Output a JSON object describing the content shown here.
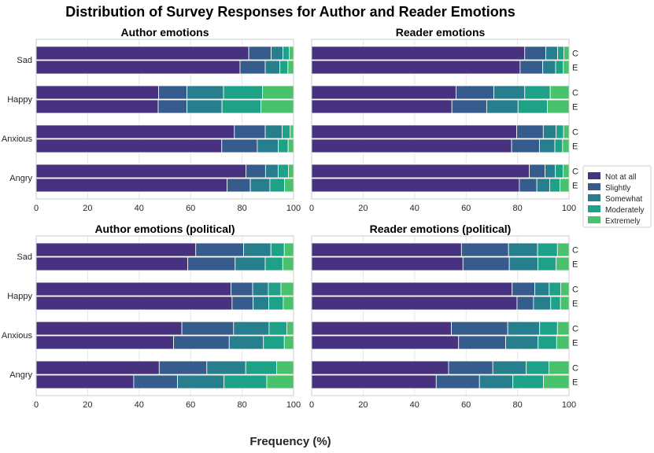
{
  "chart_data": {
    "type": "bar",
    "orientation": "horizontal-stacked",
    "title": "Distribution of Survey Responses for Author and Reader Emotions",
    "xlabel": "Frequency (%)",
    "xlim": [
      0,
      100
    ],
    "xticks": [
      0,
      20,
      40,
      60,
      80,
      100
    ],
    "categories": [
      "Sad",
      "Happy",
      "Anxious",
      "Angry"
    ],
    "bar_labels": [
      "C",
      "E"
    ],
    "response_levels": [
      "Not at all",
      "Slightly",
      "Somewhat",
      "Moderately",
      "Extremely"
    ],
    "colors": [
      "#46327e",
      "#365c8d",
      "#277f8e",
      "#1fa187",
      "#4ac16d"
    ],
    "legend_position": "right",
    "panels": [
      {
        "title": "Author emotions",
        "show_bar_labels": false,
        "groups": [
          {
            "category": "Sad",
            "bars": [
              [
                82.6,
                8.7,
                4.6,
                2.4,
                1.7
              ],
              [
                79.2,
                9.8,
                5.7,
                3.1,
                2.2
              ]
            ]
          },
          {
            "category": "Happy",
            "bars": [
              [
                47.6,
                11.0,
                14.2,
                15.1,
                12.1
              ],
              [
                47.4,
                11.2,
                13.6,
                15.1,
                12.7
              ]
            ]
          },
          {
            "category": "Anxious",
            "bars": [
              [
                77.0,
                12.0,
                6.6,
                3.1,
                1.3
              ],
              [
                72.1,
                13.8,
                8.2,
                3.8,
                2.1
              ]
            ]
          },
          {
            "category": "Angry",
            "bars": [
              [
                81.5,
                7.6,
                4.9,
                4.0,
                2.0
              ],
              [
                74.2,
                9.0,
                7.6,
                5.7,
                3.5
              ]
            ]
          }
        ]
      },
      {
        "title": "Reader emotions",
        "show_bar_labels": true,
        "groups": [
          {
            "category": "Sad",
            "bars": [
              [
                82.8,
                8.2,
                4.6,
                2.4,
                2.0
              ],
              [
                81.0,
                8.8,
                5.0,
                3.0,
                2.2
              ]
            ]
          },
          {
            "category": "Happy",
            "bars": [
              [
                56.1,
                14.7,
                12.0,
                9.9,
                7.3
              ],
              [
                54.5,
                13.5,
                12.2,
                11.4,
                8.4
              ]
            ]
          },
          {
            "category": "Anxious",
            "bars": [
              [
                79.7,
                10.3,
                5.0,
                2.9,
                2.1
              ],
              [
                77.7,
                10.8,
                6.0,
                3.0,
                2.5
              ]
            ]
          },
          {
            "category": "Angry",
            "bars": [
              [
                84.6,
                6.1,
                4.0,
                3.0,
                2.3
              ],
              [
                80.7,
                6.8,
                5.0,
                4.0,
                3.5
              ]
            ]
          }
        ]
      },
      {
        "title": "Author emotions (political)",
        "show_bar_labels": false,
        "groups": [
          {
            "category": "Sad",
            "bars": [
              [
                62.0,
                18.6,
                10.6,
                5.2,
                3.6
              ],
              [
                58.9,
                18.4,
                11.7,
                6.8,
                4.2
              ]
            ]
          },
          {
            "category": "Happy",
            "bars": [
              [
                75.7,
                8.4,
                6.1,
                4.9,
                4.9
              ],
              [
                76.1,
                8.2,
                6.1,
                5.6,
                4.0
              ]
            ]
          },
          {
            "category": "Anxious",
            "bars": [
              [
                56.6,
                20.1,
                13.8,
                6.9,
                2.6
              ],
              [
                53.4,
                21.6,
                13.3,
                8.1,
                3.6
              ]
            ]
          },
          {
            "category": "Angry",
            "bars": [
              [
                47.8,
                18.5,
                15.1,
                12.0,
                6.6
              ],
              [
                37.9,
                17.0,
                18.1,
                16.6,
                10.4
              ]
            ]
          }
        ]
      },
      {
        "title": "Reader emotions (political)",
        "show_bar_labels": true,
        "groups": [
          {
            "category": "Sad",
            "bars": [
              [
                58.2,
                18.3,
                11.3,
                7.7,
                4.5
              ],
              [
                58.8,
                18.0,
                11.1,
                7.1,
                5.0
              ]
            ]
          },
          {
            "category": "Happy",
            "bars": [
              [
                77.9,
                8.8,
                5.6,
                4.5,
                3.2
              ],
              [
                79.8,
                6.4,
                6.7,
                3.8,
                3.3
              ]
            ]
          },
          {
            "category": "Anxious",
            "bars": [
              [
                54.3,
                21.9,
                12.4,
                6.9,
                4.5
              ],
              [
                57.1,
                18.3,
                12.6,
                7.2,
                4.8
              ]
            ]
          },
          {
            "category": "Angry",
            "bars": [
              [
                53.2,
                17.2,
                13.0,
                8.8,
                7.8
              ],
              [
                48.4,
                16.8,
                13.0,
                11.9,
                9.9
              ]
            ]
          }
        ]
      }
    ]
  }
}
